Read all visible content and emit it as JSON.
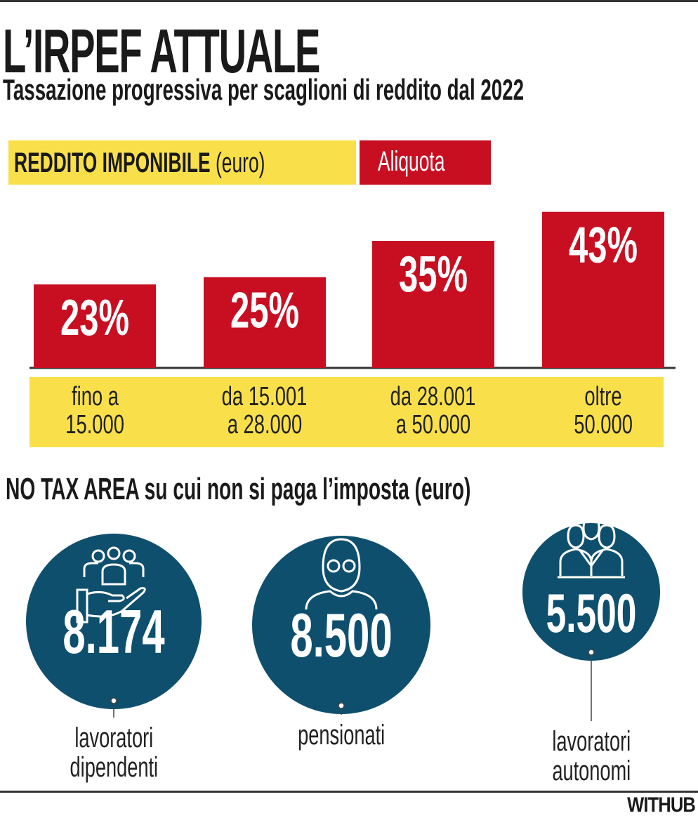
{
  "title": "L’IRPEF ATTUALE",
  "subtitle": "Tassazione progressiva per scaglioni di reddito dal 2022",
  "legend": {
    "income_label": "REDDITO IMPONIBILE",
    "income_unit": "(euro)",
    "rate_label": "Aliquota"
  },
  "colors": {
    "red": "#c80f22",
    "yellow": "#f9e04b",
    "navy": "#0e4f6e"
  },
  "chart_data": {
    "type": "bar",
    "title": "L’IRPEF ATTUALE",
    "xlabel": "REDDITO IMPONIBILE (euro)",
    "ylabel": "Aliquota",
    "categories": [
      [
        "fino a",
        "15.000"
      ],
      [
        "da 15.001",
        "a 28.000"
      ],
      [
        "da 28.001",
        "a 50.000"
      ],
      [
        "oltre",
        "50.000"
      ]
    ],
    "values": [
      23,
      25,
      35,
      43
    ],
    "value_labels": [
      "23%",
      "25%",
      "35%",
      "43%"
    ],
    "ylim": [
      0,
      45
    ],
    "grid": false
  },
  "no_tax": {
    "heading": "NO TAX AREA su cui non si paga l’imposta (euro)",
    "items": [
      {
        "value": "8.174",
        "label": [
          "lavoratori",
          "dipendenti"
        ],
        "icon": "hand-people-icon"
      },
      {
        "value": "8.500",
        "label": [
          "pensionati"
        ],
        "icon": "elderly-person-icon"
      },
      {
        "value": "5.500",
        "label": [
          "lavoratori",
          "autonomi"
        ],
        "icon": "business-group-icon"
      }
    ]
  },
  "brand": "WITHUB"
}
